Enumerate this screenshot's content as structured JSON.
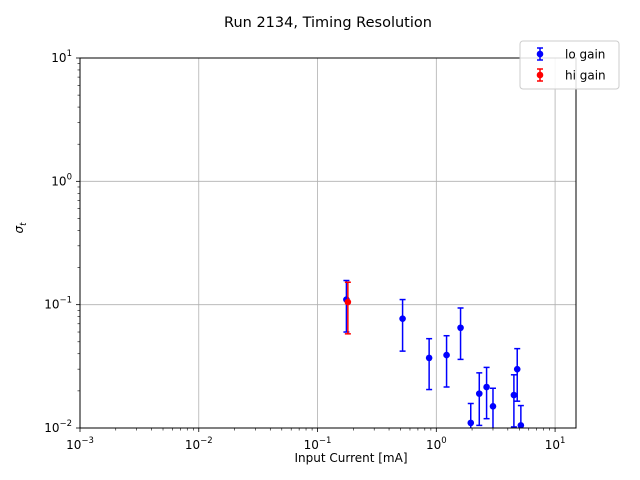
{
  "chart_data": {
    "type": "scatter",
    "title": "Run 2134, Timing Resolution",
    "xlabel": "Input Current [mA]",
    "ylabel": "σ",
    "ylabel_sub": "t",
    "xscale": "log",
    "yscale": "log",
    "xlim": [
      0.001,
      15
    ],
    "ylim": [
      0.01,
      10
    ],
    "grid": true,
    "legend_position": "top-right",
    "x_ticks": [
      {
        "value": 0.001,
        "base": "10",
        "exp": "−3"
      },
      {
        "value": 0.01,
        "base": "10",
        "exp": "−2"
      },
      {
        "value": 0.1,
        "base": "10",
        "exp": "−1"
      },
      {
        "value": 1,
        "base": "10",
        "exp": "0"
      },
      {
        "value": 10,
        "base": "10",
        "exp": "1"
      }
    ],
    "y_ticks": [
      {
        "value": 0.01,
        "base": "10",
        "exp": "−2"
      },
      {
        "value": 0.1,
        "base": "10",
        "exp": "−1"
      },
      {
        "value": 1,
        "base": "10",
        "exp": "0"
      },
      {
        "value": 10,
        "base": "10",
        "exp": "1"
      }
    ],
    "series": [
      {
        "name": "lo gain",
        "color": "#0000ff",
        "points": [
          {
            "x": 0.175,
            "y": 0.11,
            "yerr_low": 0.06,
            "yerr_high": 0.157
          },
          {
            "x": 0.52,
            "y": 0.077,
            "yerr_low": 0.042,
            "yerr_high": 0.11
          },
          {
            "x": 0.87,
            "y": 0.037,
            "yerr_low": 0.0205,
            "yerr_high": 0.053
          },
          {
            "x": 1.22,
            "y": 0.039,
            "yerr_low": 0.0215,
            "yerr_high": 0.056
          },
          {
            "x": 1.6,
            "y": 0.065,
            "yerr_low": 0.036,
            "yerr_high": 0.094
          },
          {
            "x": 1.95,
            "y": 0.011,
            "yerr_low": 0.0095,
            "yerr_high": 0.0158
          },
          {
            "x": 2.3,
            "y": 0.019,
            "yerr_low": 0.0105,
            "yerr_high": 0.028
          },
          {
            "x": 2.65,
            "y": 0.0215,
            "yerr_low": 0.0119,
            "yerr_high": 0.031
          },
          {
            "x": 3.0,
            "y": 0.015,
            "yerr_low": 0.0095,
            "yerr_high": 0.021
          },
          {
            "x": 4.5,
            "y": 0.0185,
            "yerr_low": 0.0102,
            "yerr_high": 0.027
          },
          {
            "x": 4.8,
            "y": 0.03,
            "yerr_low": 0.0165,
            "yerr_high": 0.044
          },
          {
            "x": 5.15,
            "y": 0.0105,
            "yerr_low": 0.0095,
            "yerr_high": 0.0152
          }
        ]
      },
      {
        "name": "hi gain",
        "color": "#ff0000",
        "points": [
          {
            "x": 0.18,
            "y": 0.105,
            "yerr_low": 0.058,
            "yerr_high": 0.152
          }
        ]
      }
    ]
  }
}
